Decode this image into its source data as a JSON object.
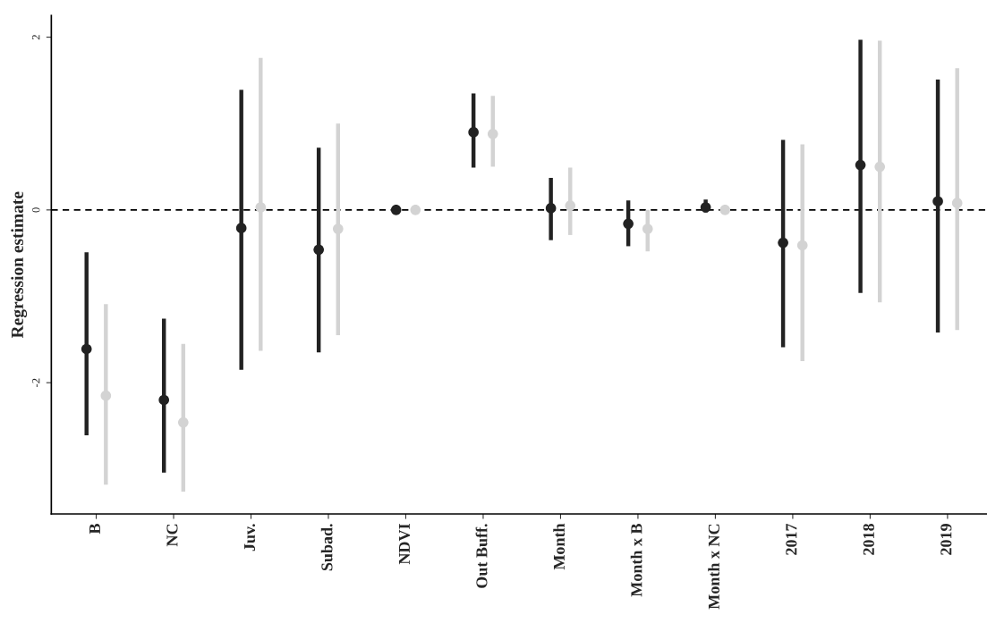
{
  "chart_data": {
    "type": "scatter",
    "ylabel": "Regression estimate",
    "categories": [
      "B",
      "NC",
      "Juv.",
      "Subad.",
      "NDVI",
      "Out Buff.",
      "Month",
      "Month x B",
      "Month x NC",
      "2017",
      "2018",
      "2019"
    ],
    "series": [
      {
        "color": "#222222",
        "values": [
          -1.61,
          -2.2,
          -0.21,
          -0.46,
          0.0,
          0.9,
          0.02,
          -0.16,
          0.03,
          -0.38,
          0.52,
          0.1
        ],
        "errors": [
          [
            -2.61,
            -0.49
          ],
          [
            -3.04,
            -1.26
          ],
          [
            -1.85,
            1.39
          ],
          [
            -1.65,
            0.72
          ],
          null,
          [
            0.49,
            1.35
          ],
          [
            -0.35,
            0.37
          ],
          [
            -0.42,
            0.11
          ],
          [
            -0.03,
            0.12
          ],
          [
            -1.59,
            0.81
          ],
          [
            -0.96,
            1.97
          ],
          [
            -1.42,
            1.51
          ]
        ]
      },
      {
        "color": "#d3d3d3",
        "values": [
          -2.15,
          -2.46,
          0.03,
          -0.22,
          0.0,
          0.88,
          0.05,
          -0.22,
          0.0,
          -0.41,
          0.5,
          0.08
        ],
        "errors": [
          [
            -3.18,
            -1.09
          ],
          [
            -3.26,
            -1.55
          ],
          [
            -1.63,
            1.76
          ],
          [
            -1.45,
            1.0
          ],
          null,
          [
            0.5,
            1.32
          ],
          [
            -0.29,
            0.49
          ],
          [
            -0.48,
            0.0
          ],
          null,
          [
            -1.75,
            0.76
          ],
          [
            -1.07,
            1.96
          ],
          [
            -1.39,
            1.64
          ]
        ]
      }
    ],
    "ylim": [
      -3.52,
      2.25
    ],
    "yticks": [
      -2,
      0,
      2
    ],
    "grid": false,
    "legend": false,
    "marker": "circle",
    "ref_lines": [
      {
        "axis": "y",
        "value": 0,
        "line_style": "dashed",
        "color": "#000000"
      }
    ]
  }
}
